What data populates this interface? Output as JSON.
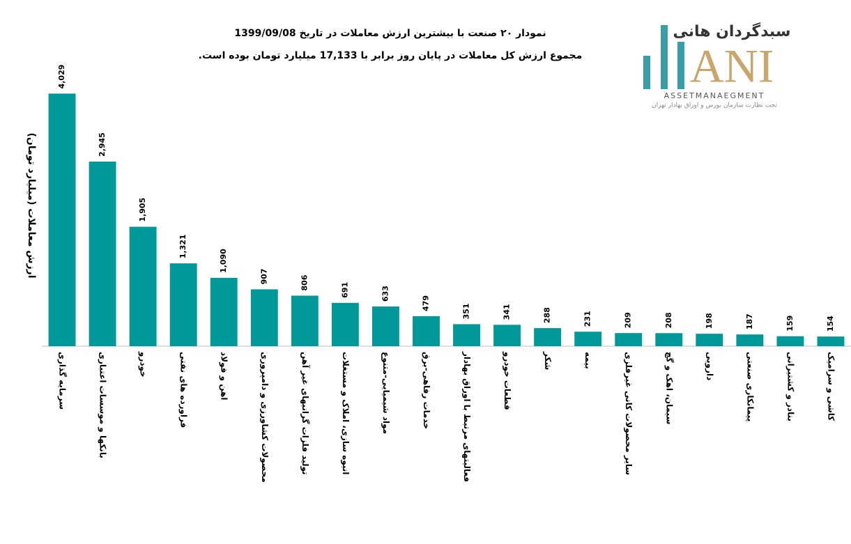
{
  "chart_data": {
    "type": "bar",
    "title": "نمودار ۲۰ صنعت با بیشترین ارزش معاملات در تاریخ 1399/09/08",
    "subtitle": "مجموع ارزش کل معاملات در پایان روز برابر با 17,133 میلیارد تومان بوده است.",
    "y_label": "ارزش معاملات (میلیارد تومان)",
    "categories": [
      "سرمایه گذاری",
      "بانکها و موسسات اعتباری",
      "خودرو",
      "فراورده های نفتی",
      "اهن و فولاد",
      "محصولات کشاورزی و دامپروری",
      "تولید فلزات گرانبهای غیر آهن",
      "انبوه سازی، املاک و مستغلات",
      "مواد شیمیایی-متنوع",
      "خدمات رفاهی-برق",
      "فعالیتهای مرتبط با اوراق بهادار",
      "قطعات خودرو",
      "شکر",
      "بیمه",
      "سایر محصولات کانی غیرفلزی",
      "سیمان، اهک و گچ",
      "دارویی",
      "پیمانکاری صنعتی",
      "بنادر و کشتیرانی",
      "کاشی و سرامیک"
    ],
    "values": [
      4029,
      2945,
      1905,
      1321,
      1090,
      907,
      806,
      691,
      633,
      479,
      351,
      341,
      288,
      231,
      209,
      208,
      198,
      187,
      159,
      154
    ],
    "value_labels": [
      "4,029",
      "2,945",
      "1,905",
      "1,321",
      "1,090",
      "907",
      "806",
      "691",
      "633",
      "479",
      "351",
      "341",
      "288",
      "231",
      "209",
      "208",
      "198",
      "187",
      "159",
      "154"
    ],
    "color": "#009999",
    "ylim": [
      0,
      4500
    ]
  },
  "logo": {
    "brand": "سبدگردان هانی",
    "mark": "ANI",
    "english": "ASSETMANAEGMENT",
    "note": "تحت نظارت سازمان بورس و اوراق بهادار تهران"
  }
}
